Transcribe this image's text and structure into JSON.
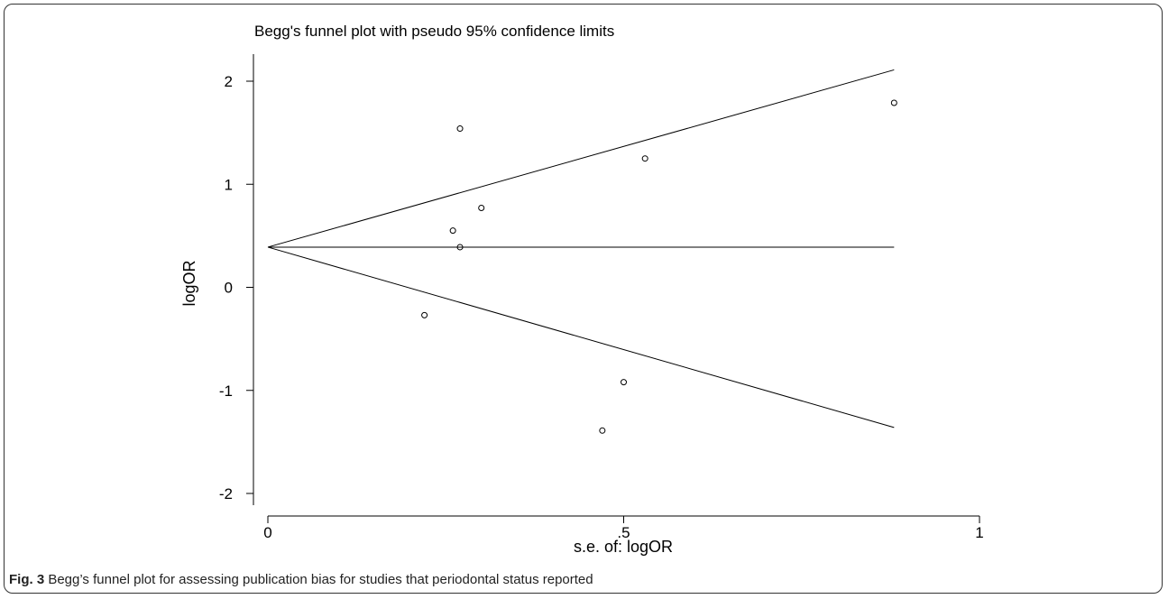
{
  "chart_data": {
    "type": "scatter",
    "title": "Begg's funnel plot with pseudo 95% confidence limits",
    "xlabel": "s.e. of: logOR",
    "ylabel": "logOR",
    "xlim": [
      0,
      1
    ],
    "ylim": [
      -2,
      2
    ],
    "x_ticks": [
      "0",
      ".5",
      "1"
    ],
    "y_ticks": [
      "-2",
      "-1",
      "0",
      "1",
      "2"
    ],
    "pooled_estimate": 0.39,
    "funnel_max_se": 0.88,
    "funnel_upper_at_max": 2.11,
    "funnel_lower_at_max": -1.36,
    "points": [
      {
        "x": 0.22,
        "y": -0.27
      },
      {
        "x": 0.26,
        "y": 0.55
      },
      {
        "x": 0.27,
        "y": 0.39
      },
      {
        "x": 0.27,
        "y": 1.54
      },
      {
        "x": 0.3,
        "y": 0.77
      },
      {
        "x": 0.47,
        "y": -1.39
      },
      {
        "x": 0.5,
        "y": -0.92
      },
      {
        "x": 0.53,
        "y": 1.25
      },
      {
        "x": 0.88,
        "y": 1.79
      }
    ],
    "grid": false,
    "legend": "none"
  },
  "caption": {
    "label": "Fig. 3",
    "text": " Begg’s funnel plot for assessing publication bias for studies that periodontal status reported"
  },
  "colors": {
    "ink": "#000000",
    "frame": "#333333"
  }
}
